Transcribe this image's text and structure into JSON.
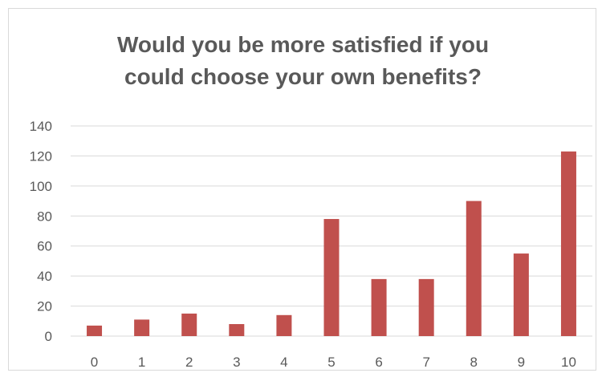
{
  "chart_data": {
    "type": "bar",
    "title_lines": [
      "Would you be more satisfied if you",
      "could choose your own benefits?"
    ],
    "categories": [
      "0",
      "1",
      "2",
      "3",
      "4",
      "5",
      "6",
      "7",
      "8",
      "9",
      "10"
    ],
    "values": [
      7,
      11,
      15,
      8,
      14,
      78,
      38,
      38,
      90,
      55,
      123
    ],
    "ylim": [
      0,
      140
    ],
    "yticks": [
      0,
      20,
      40,
      60,
      80,
      100,
      120,
      140
    ],
    "grid": true,
    "legend": "none",
    "bar_color": "#c0504d",
    "grid_color": "#d9d9d9"
  }
}
